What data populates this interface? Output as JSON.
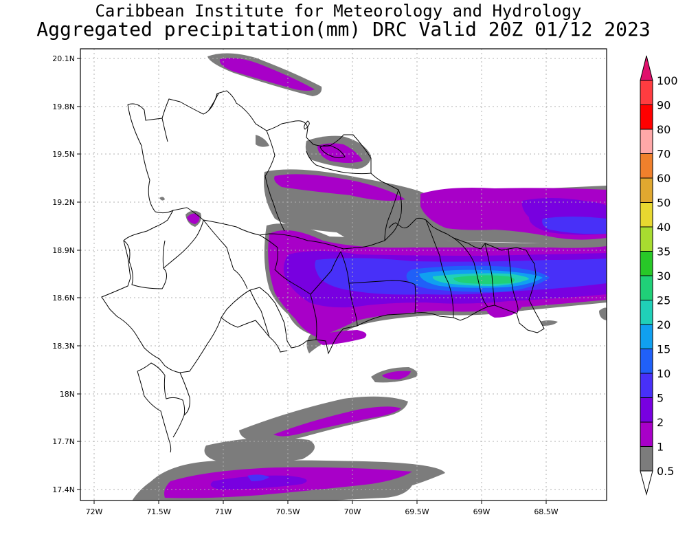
{
  "header": {
    "title_line1": "Caribbean Institute for Meteorology and Hydrology",
    "title_line2": "Aggregated precipitation(mm) DRC Valid 20Z 01/12 2023"
  },
  "map": {
    "lat_ticks": [
      "20.1N",
      "19.8N",
      "19.5N",
      "19.2N",
      "18.9N",
      "18.6N",
      "18.3N",
      "18N",
      "17.7N",
      "17.4N"
    ],
    "lon_ticks": [
      "72W",
      "71.5W",
      "71W",
      "70.5W",
      "70W",
      "69.5W",
      "69W",
      "68.5W"
    ],
    "lon_range": [
      -72.1,
      -68.1
    ],
    "lat_range": [
      17.33,
      20.17
    ],
    "grid": true
  },
  "colorbar": {
    "labels": [
      "100",
      "90",
      "80",
      "70",
      "60",
      "50",
      "40",
      "35",
      "30",
      "25",
      "20",
      "15",
      "10",
      "5",
      "2",
      "1",
      "0.5"
    ],
    "colors": [
      "#ff3c40",
      "#ff0000",
      "#ffa8a8",
      "#f0802c",
      "#e0a830",
      "#e8d830",
      "#a8dc30",
      "#28c828",
      "#20d078",
      "#20d0b8",
      "#10a0f0",
      "#2060f8",
      "#4830f8",
      "#7800e0",
      "#a800c8",
      "#7c7c7c"
    ],
    "top_color": "#e0106c",
    "bottom_color": "#ffffff"
  }
}
